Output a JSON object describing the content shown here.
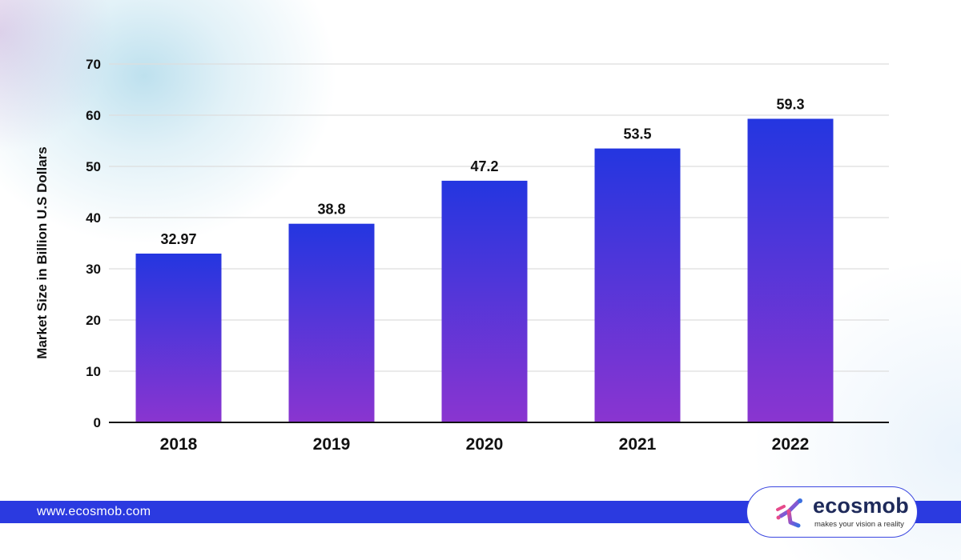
{
  "chart_data": {
    "type": "bar",
    "categories": [
      "2018",
      "2019",
      "2020",
      "2021",
      "2022"
    ],
    "values": [
      32.97,
      38.8,
      47.2,
      53.5,
      59.3
    ],
    "value_labels": [
      "32.97",
      "38.8",
      "47.2",
      "53.5",
      "59.3"
    ],
    "title": "",
    "xlabel": "",
    "ylabel": "Market Size in Billion U.S Dollars",
    "ylim": [
      0,
      70
    ],
    "yticks": [
      "0",
      "10",
      "20",
      "30",
      "40",
      "50",
      "60",
      "70"
    ],
    "grid": true,
    "legend": "none",
    "bar_gradient": {
      "top": "#2436e0",
      "bottom": "#8a35d0"
    }
  },
  "footer": {
    "website": "www.ecosmob.com",
    "band_color": "#2b3ae0"
  },
  "logo": {
    "name": "ecosmob",
    "tagline": "makes your vision a reality",
    "icon": "ecosmob-logo-mark"
  }
}
